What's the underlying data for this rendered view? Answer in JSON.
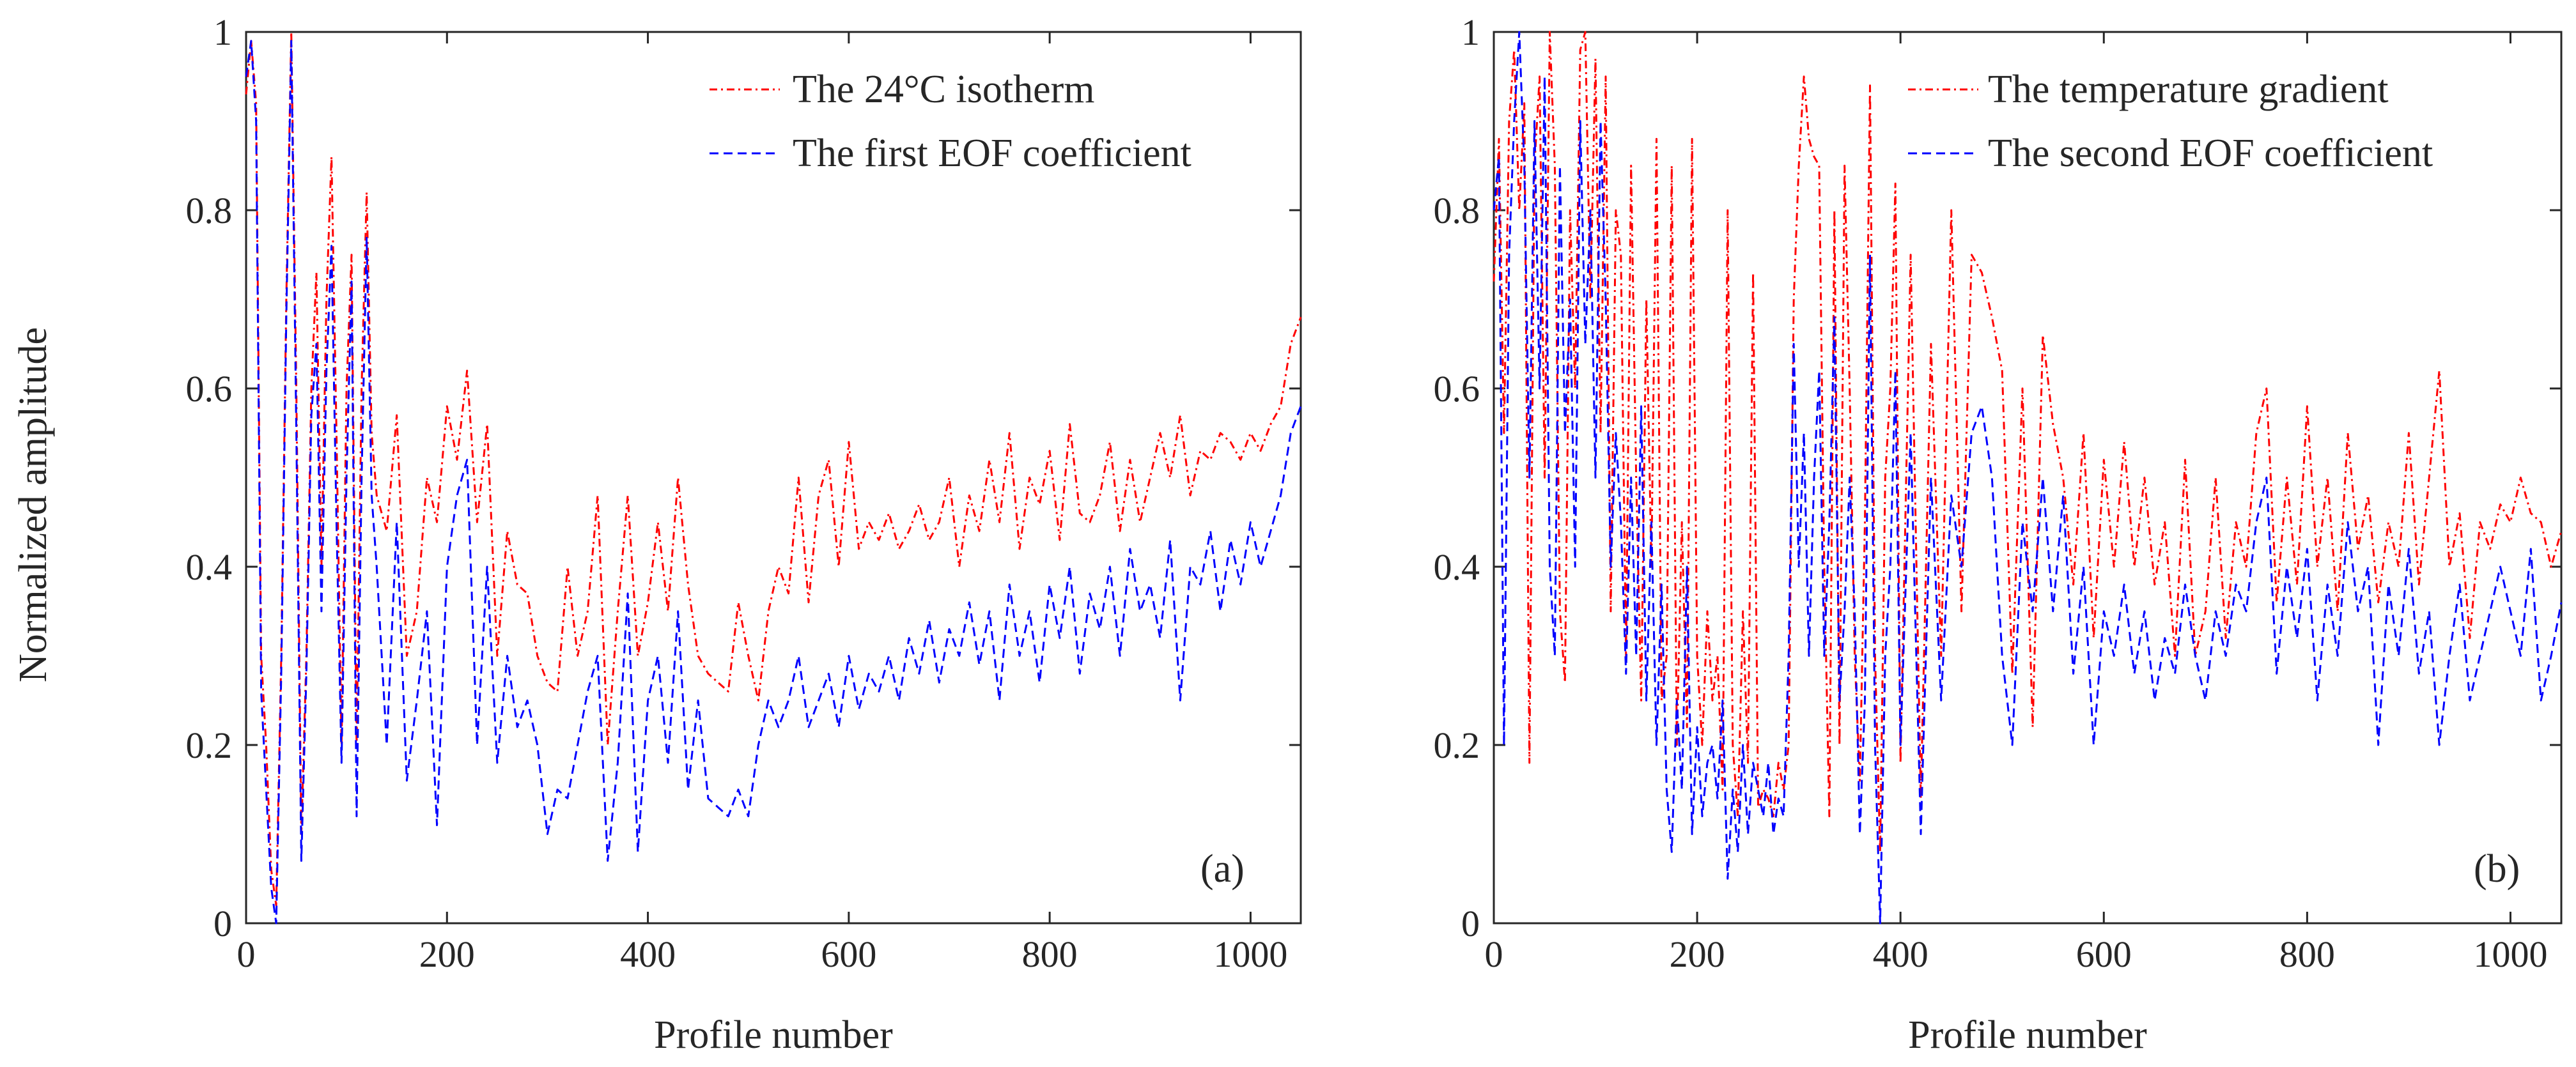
{
  "figure": {
    "ylabel": "Normalized amplitude"
  },
  "chart_data": [
    {
      "type": "line",
      "panel_label": "(a)",
      "xlabel": "Profile number",
      "ylabel": "Normalized amplitude",
      "xlim": [
        0,
        1050
      ],
      "ylim": [
        0,
        1
      ],
      "xticks": [
        0,
        200,
        400,
        600,
        800,
        1000
      ],
      "yticks": [
        0,
        0.2,
        0.4,
        0.6,
        0.8,
        1
      ],
      "xtick_labels": [
        "0",
        "200",
        "400",
        "600",
        "800",
        "1000"
      ],
      "ytick_labels": [
        "0",
        "0.2",
        "0.4",
        "0.6",
        "0.8",
        "1"
      ],
      "grid": false,
      "legend_position": "top-right",
      "x": [
        0,
        5,
        10,
        15,
        20,
        25,
        30,
        35,
        40,
        45,
        50,
        55,
        60,
        65,
        70,
        75,
        80,
        85,
        90,
        95,
        100,
        105,
        110,
        115,
        120,
        125,
        130,
        140,
        150,
        160,
        170,
        180,
        190,
        200,
        210,
        220,
        230,
        240,
        250,
        260,
        270,
        280,
        290,
        300,
        310,
        320,
        330,
        340,
        350,
        360,
        370,
        380,
        390,
        400,
        410,
        420,
        430,
        440,
        450,
        460,
        470,
        480,
        490,
        500,
        510,
        520,
        530,
        540,
        550,
        560,
        570,
        580,
        590,
        600,
        610,
        620,
        630,
        640,
        650,
        660,
        670,
        680,
        690,
        700,
        710,
        720,
        730,
        740,
        750,
        760,
        770,
        780,
        790,
        800,
        810,
        820,
        830,
        840,
        850,
        860,
        870,
        880,
        890,
        900,
        910,
        920,
        930,
        940,
        950,
        960,
        970,
        980,
        990,
        1000,
        1010,
        1020,
        1030,
        1040,
        1050
      ],
      "series": [
        {
          "name": "The 24°C isotherm",
          "color": "#ff0000",
          "style": "dashdot",
          "values": [
            0.93,
            0.99,
            0.92,
            0.3,
            0.2,
            0.06,
            0.02,
            0.3,
            0.7,
            1.0,
            0.6,
            0.1,
            0.3,
            0.6,
            0.73,
            0.4,
            0.7,
            0.86,
            0.55,
            0.2,
            0.6,
            0.75,
            0.2,
            0.6,
            0.82,
            0.55,
            0.48,
            0.44,
            0.57,
            0.3,
            0.35,
            0.5,
            0.45,
            0.58,
            0.52,
            0.62,
            0.45,
            0.56,
            0.3,
            0.44,
            0.38,
            0.37,
            0.3,
            0.27,
            0.26,
            0.4,
            0.3,
            0.35,
            0.48,
            0.2,
            0.35,
            0.48,
            0.3,
            0.36,
            0.45,
            0.35,
            0.5,
            0.38,
            0.3,
            0.28,
            0.27,
            0.26,
            0.36,
            0.3,
            0.25,
            0.35,
            0.4,
            0.37,
            0.5,
            0.36,
            0.48,
            0.52,
            0.4,
            0.54,
            0.42,
            0.45,
            0.43,
            0.46,
            0.42,
            0.44,
            0.47,
            0.43,
            0.45,
            0.5,
            0.4,
            0.48,
            0.44,
            0.52,
            0.45,
            0.55,
            0.42,
            0.5,
            0.47,
            0.53,
            0.43,
            0.56,
            0.46,
            0.45,
            0.48,
            0.54,
            0.44,
            0.52,
            0.45,
            0.5,
            0.55,
            0.5,
            0.57,
            0.48,
            0.53,
            0.52,
            0.55,
            0.54,
            0.52,
            0.55,
            0.53,
            0.56,
            0.58,
            0.65,
            0.68
          ]
        },
        {
          "name": "The first EOF coefficient",
          "color": "#0000ff",
          "style": "dashed",
          "values": [
            0.95,
            0.99,
            0.9,
            0.26,
            0.15,
            0.04,
            0.0,
            0.28,
            0.68,
            0.99,
            0.55,
            0.07,
            0.28,
            0.57,
            0.65,
            0.35,
            0.62,
            0.76,
            0.45,
            0.18,
            0.5,
            0.72,
            0.12,
            0.5,
            0.77,
            0.48,
            0.4,
            0.2,
            0.45,
            0.16,
            0.25,
            0.35,
            0.11,
            0.4,
            0.48,
            0.52,
            0.2,
            0.4,
            0.18,
            0.3,
            0.22,
            0.25,
            0.2,
            0.1,
            0.15,
            0.14,
            0.2,
            0.26,
            0.3,
            0.07,
            0.18,
            0.37,
            0.08,
            0.25,
            0.3,
            0.18,
            0.35,
            0.15,
            0.25,
            0.14,
            0.13,
            0.12,
            0.15,
            0.12,
            0.2,
            0.25,
            0.22,
            0.25,
            0.3,
            0.22,
            0.25,
            0.28,
            0.22,
            0.3,
            0.24,
            0.28,
            0.26,
            0.3,
            0.25,
            0.32,
            0.28,
            0.34,
            0.27,
            0.33,
            0.3,
            0.36,
            0.29,
            0.35,
            0.25,
            0.38,
            0.3,
            0.35,
            0.27,
            0.38,
            0.32,
            0.4,
            0.28,
            0.37,
            0.33,
            0.4,
            0.3,
            0.42,
            0.35,
            0.38,
            0.32,
            0.43,
            0.25,
            0.4,
            0.38,
            0.44,
            0.35,
            0.43,
            0.38,
            0.45,
            0.4,
            0.44,
            0.48,
            0.55,
            0.58
          ]
        }
      ]
    },
    {
      "type": "line",
      "panel_label": "(b)",
      "xlabel": "Profile number",
      "ylabel": "",
      "xlim": [
        0,
        1050
      ],
      "ylim": [
        0,
        1
      ],
      "xticks": [
        0,
        200,
        400,
        600,
        800,
        1000
      ],
      "yticks": [
        0,
        0.2,
        0.4,
        0.6,
        0.8,
        1
      ],
      "xtick_labels": [
        "0",
        "200",
        "400",
        "600",
        "800",
        "1000"
      ],
      "ytick_labels": [
        "0",
        "0.2",
        "0.4",
        "0.6",
        "0.8",
        "1"
      ],
      "grid": false,
      "legend_position": "top-right",
      "x": [
        0,
        5,
        10,
        15,
        20,
        25,
        30,
        35,
        40,
        45,
        50,
        55,
        60,
        65,
        70,
        75,
        80,
        85,
        90,
        95,
        100,
        105,
        110,
        115,
        120,
        125,
        130,
        135,
        140,
        145,
        150,
        155,
        160,
        165,
        170,
        175,
        180,
        185,
        190,
        195,
        200,
        205,
        210,
        215,
        220,
        225,
        230,
        235,
        240,
        245,
        250,
        255,
        260,
        265,
        270,
        275,
        280,
        285,
        290,
        295,
        300,
        305,
        310,
        315,
        320,
        325,
        330,
        335,
        340,
        345,
        350,
        355,
        360,
        365,
        370,
        375,
        380,
        385,
        390,
        395,
        400,
        410,
        420,
        430,
        440,
        450,
        460,
        470,
        480,
        490,
        500,
        510,
        520,
        530,
        540,
        550,
        560,
        570,
        580,
        590,
        600,
        610,
        620,
        630,
        640,
        650,
        660,
        670,
        680,
        690,
        700,
        710,
        720,
        730,
        740,
        750,
        760,
        770,
        780,
        790,
        800,
        810,
        820,
        830,
        840,
        850,
        860,
        870,
        880,
        890,
        900,
        910,
        920,
        930,
        940,
        950,
        960,
        970,
        980,
        990,
        1000,
        1010,
        1020,
        1030,
        1040,
        1050
      ],
      "series": [
        {
          "name": "The temperature gradient",
          "color": "#ff0000",
          "style": "dashdot",
          "values": [
            0.72,
            0.88,
            0.55,
            0.9,
            0.98,
            0.8,
            0.92,
            0.18,
            0.85,
            0.95,
            0.5,
            1.0,
            0.85,
            0.35,
            0.27,
            0.8,
            0.6,
            0.98,
            1.0,
            0.7,
            0.97,
            0.55,
            0.95,
            0.35,
            0.8,
            0.75,
            0.3,
            0.85,
            0.5,
            0.25,
            0.7,
            0.4,
            0.88,
            0.25,
            0.3,
            0.85,
            0.2,
            0.45,
            0.22,
            0.88,
            0.3,
            0.2,
            0.35,
            0.25,
            0.3,
            0.15,
            0.8,
            0.2,
            0.12,
            0.35,
            0.18,
            0.73,
            0.13,
            0.15,
            0.14,
            0.12,
            0.18,
            0.15,
            0.2,
            0.7,
            0.85,
            0.95,
            0.88,
            0.86,
            0.85,
            0.4,
            0.12,
            0.8,
            0.2,
            0.85,
            0.6,
            0.3,
            0.16,
            0.45,
            0.94,
            0.3,
            0.08,
            0.5,
            0.6,
            0.83,
            0.18,
            0.75,
            0.14,
            0.65,
            0.3,
            0.8,
            0.35,
            0.75,
            0.73,
            0.68,
            0.62,
            0.28,
            0.6,
            0.22,
            0.66,
            0.56,
            0.5,
            0.38,
            0.55,
            0.32,
            0.52,
            0.4,
            0.54,
            0.4,
            0.5,
            0.38,
            0.45,
            0.3,
            0.52,
            0.3,
            0.35,
            0.5,
            0.32,
            0.45,
            0.4,
            0.55,
            0.6,
            0.36,
            0.5,
            0.38,
            0.58,
            0.4,
            0.5,
            0.35,
            0.55,
            0.42,
            0.48,
            0.36,
            0.45,
            0.4,
            0.55,
            0.38,
            0.5,
            0.62,
            0.4,
            0.46,
            0.32,
            0.45,
            0.42,
            0.47,
            0.45,
            0.5,
            0.46,
            0.45,
            0.4,
            0.44
          ]
        },
        {
          "name": "The second EOF coefficient",
          "color": "#0000ff",
          "style": "dashed",
          "values": [
            0.8,
            0.86,
            0.2,
            0.75,
            0.9,
            1.0,
            0.85,
            0.5,
            0.9,
            0.6,
            0.95,
            0.4,
            0.3,
            0.85,
            0.55,
            0.7,
            0.4,
            0.9,
            0.65,
            0.8,
            0.5,
            0.9,
            0.7,
            0.4,
            0.55,
            0.45,
            0.28,
            0.5,
            0.3,
            0.58,
            0.25,
            0.45,
            0.2,
            0.38,
            0.15,
            0.08,
            0.25,
            0.15,
            0.4,
            0.1,
            0.22,
            0.12,
            0.18,
            0.2,
            0.14,
            0.25,
            0.05,
            0.15,
            0.08,
            0.2,
            0.1,
            0.18,
            0.15,
            0.12,
            0.18,
            0.1,
            0.14,
            0.12,
            0.3,
            0.65,
            0.4,
            0.55,
            0.3,
            0.5,
            0.62,
            0.3,
            0.45,
            0.68,
            0.25,
            0.35,
            0.5,
            0.35,
            0.1,
            0.25,
            0.75,
            0.2,
            0.0,
            0.3,
            0.4,
            0.62,
            0.2,
            0.55,
            0.1,
            0.5,
            0.25,
            0.48,
            0.4,
            0.55,
            0.58,
            0.5,
            0.3,
            0.2,
            0.45,
            0.35,
            0.5,
            0.35,
            0.48,
            0.28,
            0.4,
            0.2,
            0.35,
            0.3,
            0.38,
            0.28,
            0.35,
            0.25,
            0.32,
            0.28,
            0.38,
            0.3,
            0.25,
            0.35,
            0.3,
            0.38,
            0.35,
            0.45,
            0.5,
            0.28,
            0.4,
            0.32,
            0.42,
            0.25,
            0.38,
            0.3,
            0.45,
            0.35,
            0.4,
            0.2,
            0.38,
            0.3,
            0.42,
            0.28,
            0.35,
            0.2,
            0.3,
            0.38,
            0.25,
            0.3,
            0.35,
            0.4,
            0.35,
            0.3,
            0.42,
            0.25,
            0.3,
            0.36
          ]
        }
      ]
    }
  ]
}
